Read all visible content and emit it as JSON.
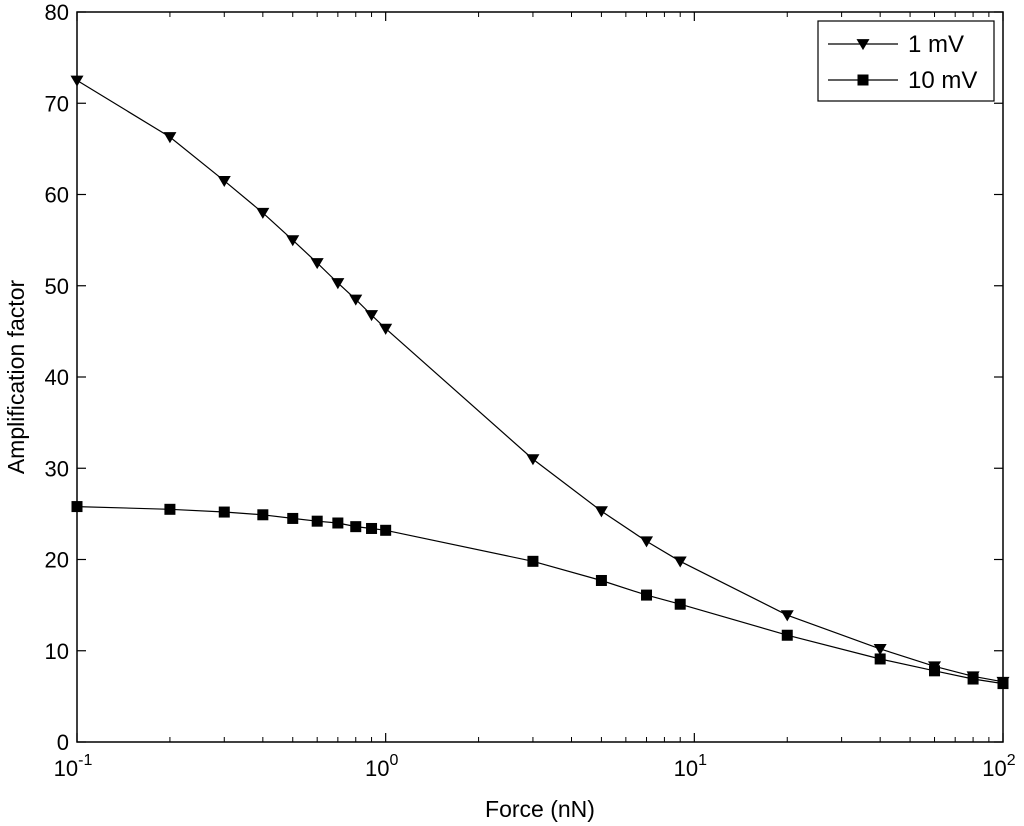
{
  "chart_data": {
    "type": "line",
    "title": "",
    "xlabel": "Force (nN)",
    "ylabel": "Amplification factor",
    "xscale": "log",
    "xlim": [
      0.1,
      100
    ],
    "ylim": [
      0,
      80
    ],
    "x_ticks": [
      {
        "value": 0.1,
        "base": "10",
        "exp": "-1"
      },
      {
        "value": 1,
        "base": "10",
        "exp": "0"
      },
      {
        "value": 10,
        "base": "10",
        "exp": "1"
      },
      {
        "value": 100,
        "base": "10",
        "exp": "2"
      }
    ],
    "y_ticks": [
      0,
      10,
      20,
      30,
      40,
      50,
      60,
      70,
      80
    ],
    "grid": false,
    "legend_position": "top-right",
    "series": [
      {
        "name": "1 mV",
        "marker": "triangle-down",
        "x": [
          0.1,
          0.2,
          0.3,
          0.4,
          0.5,
          0.6,
          0.7,
          0.8,
          0.9,
          1,
          3,
          5,
          7,
          9,
          20,
          40,
          60,
          80,
          100
        ],
        "y": [
          72.5,
          66.3,
          61.5,
          58.0,
          55.0,
          52.5,
          50.3,
          48.5,
          46.8,
          45.3,
          31.0,
          25.3,
          22.0,
          19.8,
          13.9,
          10.2,
          8.3,
          7.2,
          6.6
        ]
      },
      {
        "name": "10 mV",
        "marker": "square",
        "x": [
          0.1,
          0.2,
          0.3,
          0.4,
          0.5,
          0.6,
          0.7,
          0.8,
          0.9,
          1,
          3,
          5,
          7,
          9,
          20,
          40,
          60,
          80,
          100
        ],
        "y": [
          25.8,
          25.5,
          25.2,
          24.9,
          24.5,
          24.2,
          24.0,
          23.6,
          23.4,
          23.2,
          19.8,
          17.7,
          16.1,
          15.1,
          11.7,
          9.1,
          7.8,
          6.9,
          6.4
        ]
      }
    ]
  }
}
